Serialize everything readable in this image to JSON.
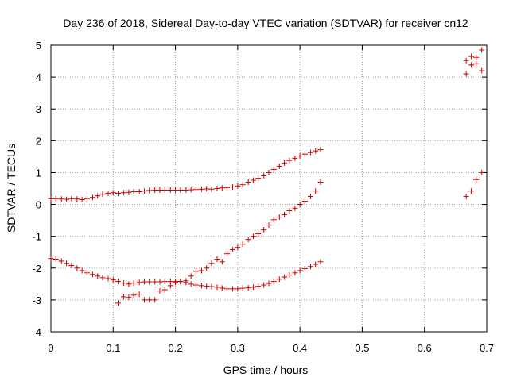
{
  "chart_data": {
    "type": "scatter",
    "title": "Day 236 of 2018, Sidereal Day-to-day VTEC variation (SDTVAR) for receiver cn12",
    "xlabel": "GPS time / hours",
    "ylabel": "SDTVAR / TECUs",
    "xlim": [
      0,
      0.7
    ],
    "ylim": [
      -4,
      5
    ],
    "xticks": [
      0,
      0.1,
      0.2,
      0.3,
      0.4,
      0.5,
      0.6,
      0.7
    ],
    "yticks": [
      -4,
      -3,
      -2,
      -1,
      0,
      1,
      2,
      3,
      4,
      5
    ],
    "xtick_labels": [
      "0",
      "0.1",
      "0.2",
      "0.3",
      "0.4",
      "0.5",
      "0.6",
      "0.7"
    ],
    "ytick_labels": [
      "-4",
      "-3",
      "-2",
      "-1",
      "0",
      "1",
      "2",
      "3",
      "4",
      "5"
    ],
    "grid": true,
    "marker": "+",
    "color": "#cc0000",
    "series": [
      {
        "name": "track-1",
        "x": [
          0.0,
          0.008,
          0.017,
          0.025,
          0.033,
          0.042,
          0.05,
          0.058,
          0.067,
          0.075,
          0.083,
          0.092,
          0.1,
          0.108,
          0.117,
          0.125,
          0.133,
          0.142,
          0.15,
          0.158,
          0.167,
          0.175,
          0.183,
          0.192,
          0.2,
          0.208,
          0.217,
          0.225,
          0.233,
          0.242,
          0.25,
          0.258,
          0.267,
          0.275,
          0.283,
          0.292,
          0.3,
          0.308,
          0.317,
          0.325,
          0.333,
          0.342,
          0.35,
          0.358,
          0.367,
          0.375,
          0.383,
          0.392,
          0.4,
          0.408,
          0.417,
          0.425,
          0.433
        ],
        "y": [
          0.18,
          0.18,
          0.17,
          0.16,
          0.18,
          0.17,
          0.15,
          0.18,
          0.22,
          0.27,
          0.32,
          0.35,
          0.37,
          0.35,
          0.37,
          0.38,
          0.4,
          0.4,
          0.42,
          0.44,
          0.45,
          0.45,
          0.45,
          0.45,
          0.45,
          0.45,
          0.45,
          0.46,
          0.47,
          0.48,
          0.49,
          0.48,
          0.5,
          0.52,
          0.53,
          0.55,
          0.58,
          0.62,
          0.7,
          0.76,
          0.82,
          0.9,
          1.0,
          1.1,
          1.2,
          1.3,
          1.38,
          1.45,
          1.52,
          1.58,
          1.63,
          1.68,
          1.72
        ]
      },
      {
        "name": "track-2",
        "x": [
          0.0,
          0.008,
          0.017,
          0.025,
          0.033,
          0.042,
          0.05,
          0.058,
          0.067,
          0.075,
          0.083,
          0.092,
          0.1,
          0.108,
          0.117,
          0.125,
          0.133,
          0.142,
          0.15,
          0.158,
          0.167,
          0.175,
          0.183,
          0.192,
          0.2,
          0.208,
          0.217,
          0.225,
          0.233,
          0.242,
          0.25,
          0.258,
          0.267,
          0.275,
          0.283,
          0.292,
          0.3,
          0.308,
          0.317,
          0.325,
          0.333,
          0.342,
          0.35,
          0.358,
          0.367,
          0.375,
          0.383,
          0.392,
          0.4,
          0.408,
          0.417,
          0.425,
          0.433
        ],
        "y": [
          -1.7,
          -1.72,
          -1.78,
          -1.85,
          -1.92,
          -2.0,
          -2.08,
          -2.15,
          -2.2,
          -2.25,
          -2.3,
          -2.33,
          -2.37,
          -2.42,
          -2.47,
          -2.5,
          -2.47,
          -2.45,
          -2.43,
          -2.43,
          -2.43,
          -2.43,
          -2.42,
          -2.42,
          -2.42,
          -2.42,
          -2.45,
          -2.5,
          -2.53,
          -2.55,
          -2.57,
          -2.58,
          -2.6,
          -2.63,
          -2.65,
          -2.65,
          -2.65,
          -2.63,
          -2.62,
          -2.6,
          -2.57,
          -2.53,
          -2.48,
          -2.42,
          -2.35,
          -2.28,
          -2.22,
          -2.15,
          -2.08,
          -2.02,
          -1.95,
          -1.88,
          -1.8
        ]
      },
      {
        "name": "track-3",
        "x": [
          0.108,
          0.117,
          0.125,
          0.133,
          0.142,
          0.15,
          0.158,
          0.167,
          0.175,
          0.183,
          0.192,
          0.2,
          0.208,
          0.217,
          0.225,
          0.233,
          0.242,
          0.25,
          0.258,
          0.267,
          0.275,
          0.283,
          0.292,
          0.3,
          0.308,
          0.317,
          0.325,
          0.333,
          0.342,
          0.35,
          0.358,
          0.367,
          0.375,
          0.383,
          0.392,
          0.4,
          0.408,
          0.417,
          0.425,
          0.433
        ],
        "y": [
          -3.1,
          -2.9,
          -2.92,
          -2.85,
          -2.82,
          -3.0,
          -3.0,
          -3.0,
          -2.72,
          -2.68,
          -2.55,
          -2.45,
          -2.42,
          -2.4,
          -2.25,
          -2.1,
          -2.08,
          -2.0,
          -1.85,
          -1.72,
          -1.8,
          -1.55,
          -1.42,
          -1.35,
          -1.25,
          -1.1,
          -1.0,
          -0.92,
          -0.8,
          -0.65,
          -0.48,
          -0.4,
          -0.32,
          -0.2,
          -0.12,
          0.0,
          0.1,
          0.25,
          0.42,
          0.7
        ]
      },
      {
        "name": "track-4",
        "x": [
          0.667,
          0.675,
          0.683,
          0.692
        ],
        "y": [
          0.25,
          0.42,
          0.78,
          1.0
        ]
      },
      {
        "name": "track-5",
        "x": [
          0.667,
          0.667,
          0.675,
          0.675,
          0.683,
          0.683,
          0.692,
          0.692
        ],
        "y": [
          4.1,
          4.52,
          4.65,
          4.38,
          4.42,
          4.62,
          4.2,
          4.85
        ]
      }
    ]
  }
}
